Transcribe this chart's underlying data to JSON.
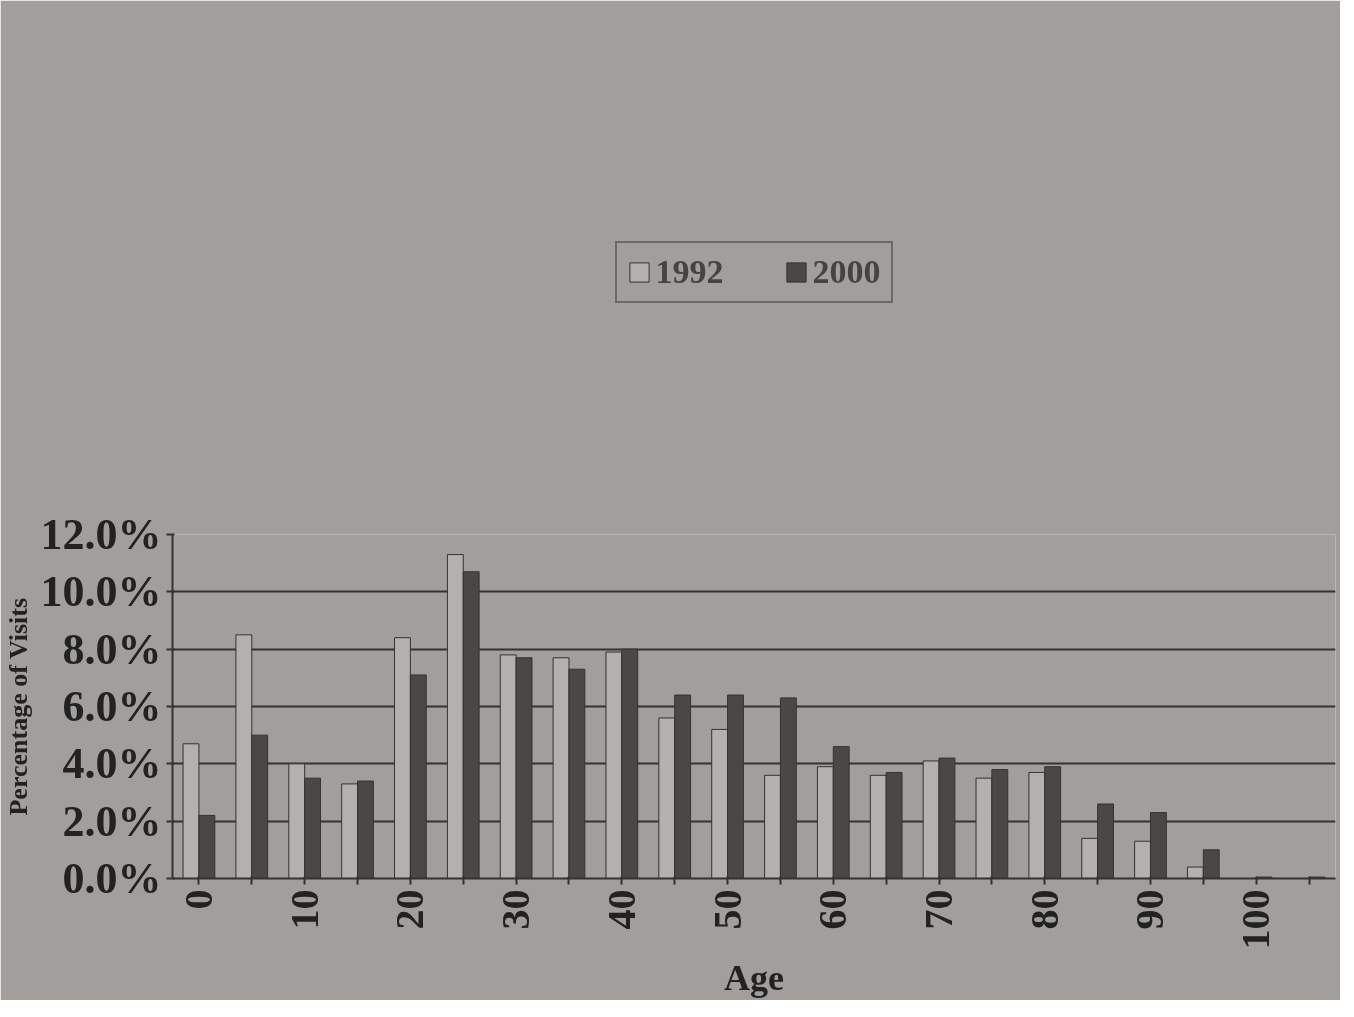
{
  "chart_data": {
    "type": "bar",
    "xlabel": "Age",
    "ylabel": "Percentage of Visits",
    "categories": [
      "0",
      null,
      "10",
      null,
      "20",
      null,
      "30",
      null,
      "40",
      null,
      "50",
      null,
      "60",
      null,
      "70",
      null,
      "80",
      null,
      "90",
      null,
      "100",
      null
    ],
    "series": [
      {
        "name": "1992",
        "color": "#b3b0ad",
        "values": [
          4.7,
          8.5,
          4.0,
          3.3,
          8.4,
          11.3,
          7.8,
          7.7,
          7.9,
          5.6,
          5.2,
          3.6,
          3.9,
          3.6,
          4.1,
          3.5,
          3.7,
          1.4,
          1.3,
          0.4,
          null,
          null
        ]
      },
      {
        "name": "2000",
        "color": "#4a4847",
        "values": [
          2.2,
          5.0,
          3.5,
          3.4,
          7.1,
          10.7,
          7.7,
          7.3,
          8.0,
          6.4,
          6.4,
          6.3,
          4.6,
          3.7,
          4.2,
          3.8,
          3.9,
          2.6,
          2.3,
          1.0,
          0.05,
          0.05
        ]
      }
    ],
    "ylim": [
      0,
      12
    ],
    "yticks": [
      {
        "value": 0,
        "label": "0.0%"
      },
      {
        "value": 2,
        "label": "2.0%"
      },
      {
        "value": 4,
        "label": "4.0%"
      },
      {
        "value": 6,
        "label": "6.0%"
      },
      {
        "value": 8,
        "label": "8.0%"
      },
      {
        "value": 10,
        "label": "10.0%"
      },
      {
        "value": 12,
        "label": "12.0%"
      }
    ],
    "grid": "y",
    "legend": "top"
  }
}
